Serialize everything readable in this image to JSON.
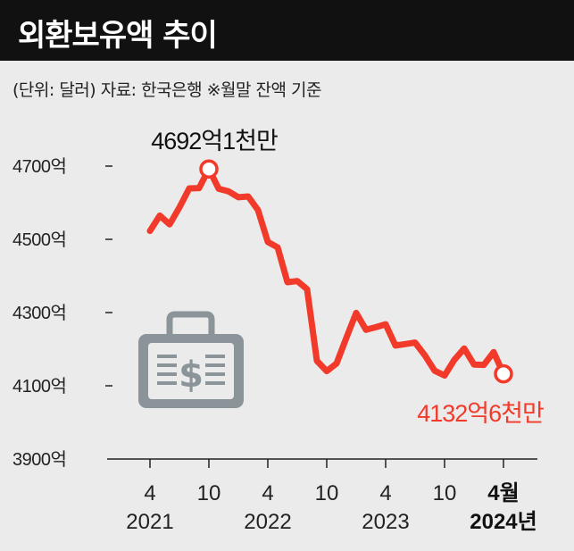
{
  "header": {
    "title": "외환보유액 추이"
  },
  "subtitle": "(단위: 달러)  자료: 한국은행  ※월말 잔액 기준",
  "colors": {
    "line": "#f23a2a",
    "axis": "#222222",
    "header_bg": "#111111",
    "bg": "#ebebeb",
    "icon": "#8a9499"
  },
  "icon": "briefcase-dollar-icon",
  "chart_data": {
    "type": "line",
    "title": "외환보유액 추이",
    "unit": "달러",
    "ylim": [
      3900,
      4800
    ],
    "yticks": [
      3900,
      4100,
      4300,
      4500,
      4700
    ],
    "ytick_labels": [
      "3900억",
      "4100억",
      "4300억",
      "4500억",
      "4700억"
    ],
    "xtick_labels": [
      {
        "month": "4",
        "year": "2021"
      },
      {
        "month": "10",
        "year": ""
      },
      {
        "month": "4",
        "year": "2022"
      },
      {
        "month": "10",
        "year": ""
      },
      {
        "month": "4",
        "year": "2023"
      },
      {
        "month": "10",
        "year": ""
      },
      {
        "month": "4월",
        "year": "2024년",
        "bold": true
      }
    ],
    "x": [
      "2021-04",
      "2021-05",
      "2021-06",
      "2021-07",
      "2021-08",
      "2021-09",
      "2021-10",
      "2021-11",
      "2021-12",
      "2022-01",
      "2022-02",
      "2022-03",
      "2022-04",
      "2022-05",
      "2022-06",
      "2022-07",
      "2022-08",
      "2022-09",
      "2022-10",
      "2022-11",
      "2022-12",
      "2023-01",
      "2023-02",
      "2023-03",
      "2023-04",
      "2023-05",
      "2023-06",
      "2023-07",
      "2023-08",
      "2023-09",
      "2023-10",
      "2023-11",
      "2023-12",
      "2024-01",
      "2024-02",
      "2024-03",
      "2024-04"
    ],
    "series": [
      {
        "values": [
          4523,
          4565,
          4541,
          4587,
          4639,
          4640,
          4692.1,
          4638,
          4631,
          4615,
          4617,
          4580,
          4493,
          4478,
          4383,
          4386,
          4364,
          4168,
          4140,
          4161,
          4231,
          4299,
          4253,
          4260,
          4268,
          4210,
          4214,
          4218,
          4183,
          4141,
          4128,
          4171,
          4202,
          4158,
          4157,
          4192,
          4132.6
        ]
      }
    ],
    "annotations": [
      {
        "label": "4692억1천만",
        "at": "2021-10",
        "value": 4692.1,
        "color": "#111111"
      },
      {
        "label": "4132억6천만",
        "at": "2024-04",
        "value": 4132.6,
        "color": "#f23a2a"
      }
    ]
  }
}
